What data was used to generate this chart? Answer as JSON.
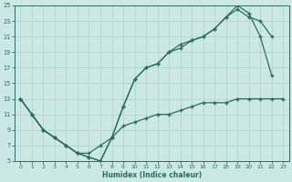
{
  "background_color": "#cce8e4",
  "grid_color": "#b0d4ce",
  "line_color": "#2a6e62",
  "xlabel": "Humidex (Indice chaleur)",
  "xlim": [
    -0.5,
    23.5
  ],
  "ylim": [
    5,
    25
  ],
  "xticks": [
    0,
    1,
    2,
    3,
    4,
    5,
    6,
    7,
    8,
    9,
    10,
    11,
    12,
    13,
    14,
    15,
    16,
    17,
    18,
    19,
    20,
    21,
    22,
    23
  ],
  "yticks": [
    5,
    7,
    9,
    11,
    13,
    15,
    17,
    19,
    21,
    23,
    25
  ],
  "curve1_x": [
    0,
    1,
    2,
    3,
    4,
    5,
    6,
    7,
    8,
    9,
    10,
    11,
    12,
    13,
    14,
    15,
    16,
    17,
    18,
    19,
    20,
    21,
    22
  ],
  "curve1_y": [
    13,
    11,
    9,
    8,
    7,
    6,
    5.5,
    5,
    8,
    12,
    15.5,
    17,
    17.5,
    19,
    20,
    20.5,
    21,
    22,
    23.5,
    25,
    24,
    21,
    16
  ],
  "curve2_x": [
    0,
    1,
    2,
    3,
    4,
    5,
    6,
    7,
    8,
    9,
    10,
    11,
    12,
    13,
    14,
    15,
    16,
    17,
    18,
    19,
    20,
    21,
    22
  ],
  "curve2_y": [
    13,
    11,
    9,
    8,
    7,
    6,
    5.5,
    5,
    8,
    12,
    15.5,
    17,
    17.5,
    19,
    19.5,
    20.5,
    21,
    22,
    23.5,
    24.5,
    23.5,
    23.0,
    21
  ],
  "curve3_x": [
    0,
    1,
    2,
    3,
    4,
    5,
    6,
    7,
    8,
    9,
    10,
    11,
    12,
    13,
    14,
    15,
    16,
    17,
    18,
    19,
    20,
    21,
    22,
    23
  ],
  "curve3_y": [
    13,
    11,
    9,
    8,
    7,
    6,
    6,
    7,
    8,
    9.5,
    10,
    10.5,
    11,
    11,
    11.5,
    12,
    12.5,
    12.5,
    12.5,
    13,
    13,
    13,
    13,
    13
  ]
}
